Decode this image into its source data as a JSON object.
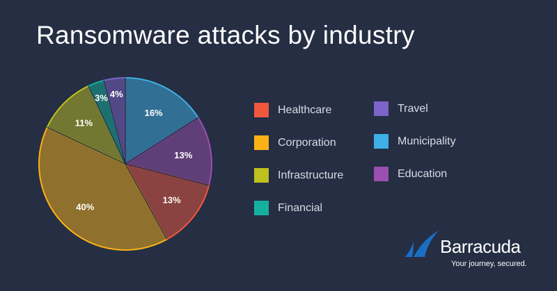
{
  "chart_data": {
    "type": "pie",
    "title": "Ransomware attacks by industry",
    "slices": [
      {
        "label": "Municipality",
        "value": 16,
        "data_label": "16%",
        "color": "#3eb0e6"
      },
      {
        "label": "Education",
        "value": 13,
        "data_label": "13%",
        "color": "#9b4fb0"
      },
      {
        "label": "Healthcare",
        "value": 13,
        "data_label": "13%",
        "color": "#f0583e"
      },
      {
        "label": "Corporation",
        "value": 40,
        "data_label": "40%",
        "color": "#fbb217"
      },
      {
        "label": "Infrastructure",
        "value": 11,
        "data_label": "11%",
        "color": "#bfc11f"
      },
      {
        "label": "Financial",
        "value": 3,
        "data_label": "3%",
        "color": "#15b19e"
      },
      {
        "label": "Travel",
        "value": 4,
        "data_label": "4%",
        "color": "#7c64c8"
      }
    ],
    "start_angle": "12 o'clock",
    "direction": "clockwise",
    "legend_placement": "right",
    "legend_order": [
      "Healthcare",
      "Corporation",
      "Infrastructure",
      "Financial",
      "Travel",
      "Municipality",
      "Education"
    ]
  },
  "brand": {
    "name": "Barracuda",
    "tagline": "Your journey, secured."
  },
  "colors": {
    "background": "#252e43",
    "logo": "#1a6fc4"
  }
}
